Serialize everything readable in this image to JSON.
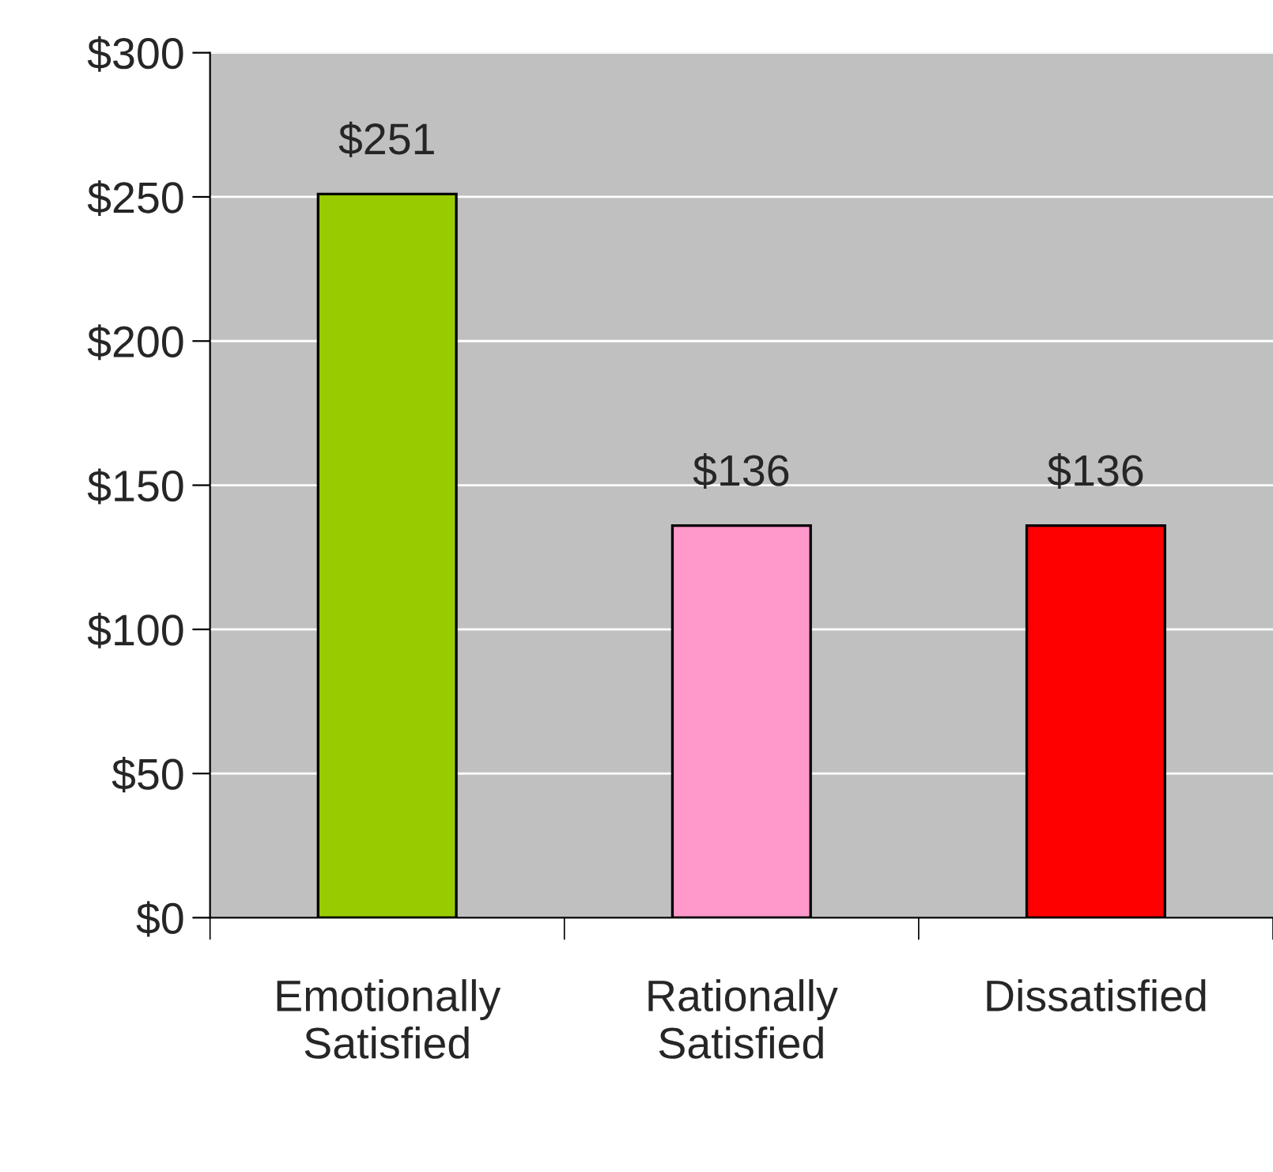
{
  "chart_data": {
    "type": "bar",
    "categories": [
      "Emotionally\nSatisfied",
      "Rationally\nSatisfied",
      "Dissatisfied"
    ],
    "values": [
      251,
      136,
      136
    ],
    "colors": [
      "#99cc00",
      "#ff99cc",
      "#ff0000"
    ],
    "value_labels": [
      "$251",
      "$136",
      "$136"
    ],
    "ylim": [
      0,
      300
    ],
    "yticks": [
      {
        "value": 0,
        "label": "$0"
      },
      {
        "value": 50,
        "label": "$50"
      },
      {
        "value": 100,
        "label": "$100"
      },
      {
        "value": 150,
        "label": "$150"
      },
      {
        "value": 200,
        "label": "$200"
      },
      {
        "value": 250,
        "label": "$250"
      },
      {
        "value": 300,
        "label": "$300"
      }
    ],
    "grid": "y"
  }
}
